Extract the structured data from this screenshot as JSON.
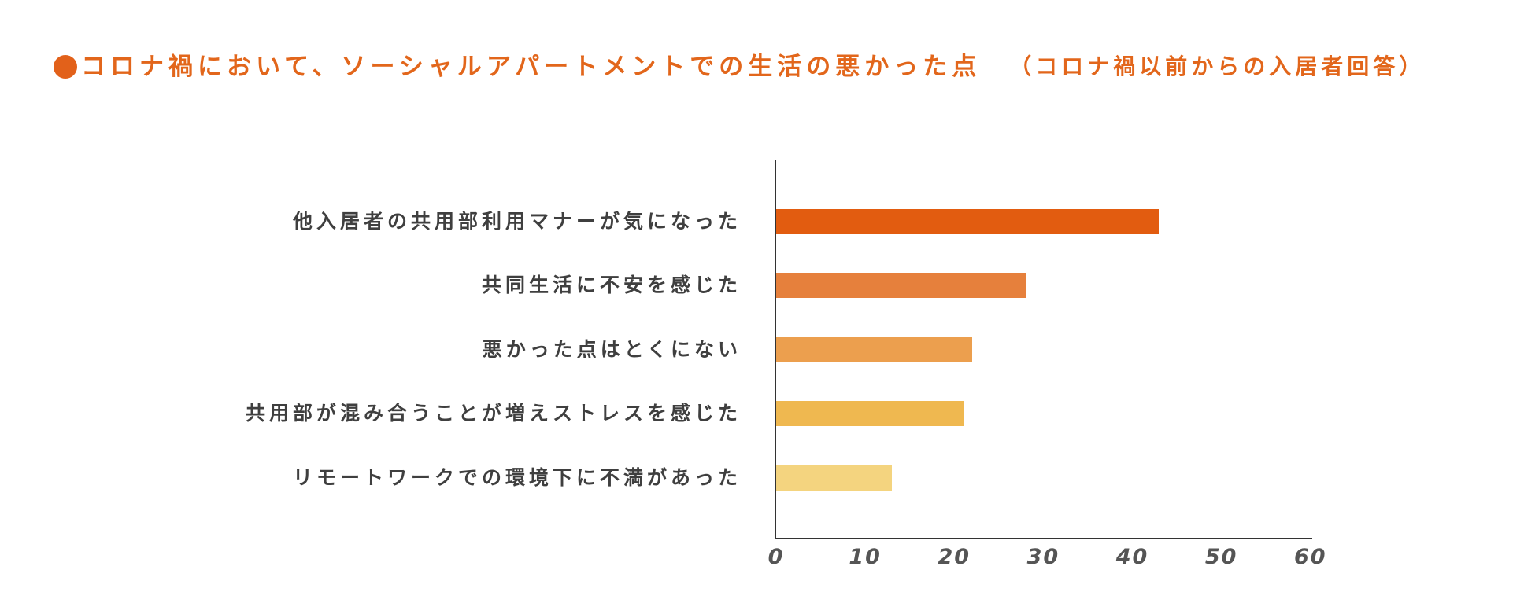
{
  "colors": {
    "title": "#E2661B",
    "bullet": "#E2611A",
    "label_text": "#3f3f3f",
    "axis": "#333333",
    "tick_text": "#555555"
  },
  "icons": {
    "title_bullet": "bullet-circle-icon"
  },
  "chart_data": {
    "type": "bar",
    "orientation": "horizontal",
    "title": "コロナ禍において、ソーシャルアパートメントでの生活の悪かった点",
    "subtitle": "（コロナ禍以前からの入居者回答）",
    "categories": [
      "他入居者の共用部利用マナーが気になった",
      "共同生活に不安を感じた",
      "悪かった点はとくにない",
      "共用部が混み合うことが増えストレスを感じた",
      "リモートワークでの環境下に不満があった"
    ],
    "values": [
      43,
      28,
      22,
      21,
      13
    ],
    "bar_colors": [
      "#E25C10",
      "#E6803C",
      "#EC9F4E",
      "#EFB850",
      "#F4D47F"
    ],
    "xlim": [
      0,
      60
    ],
    "xticks": [
      0,
      10,
      20,
      30,
      40,
      50,
      60
    ],
    "xlabel": "",
    "ylabel": "",
    "grid": false,
    "legend": "none"
  }
}
